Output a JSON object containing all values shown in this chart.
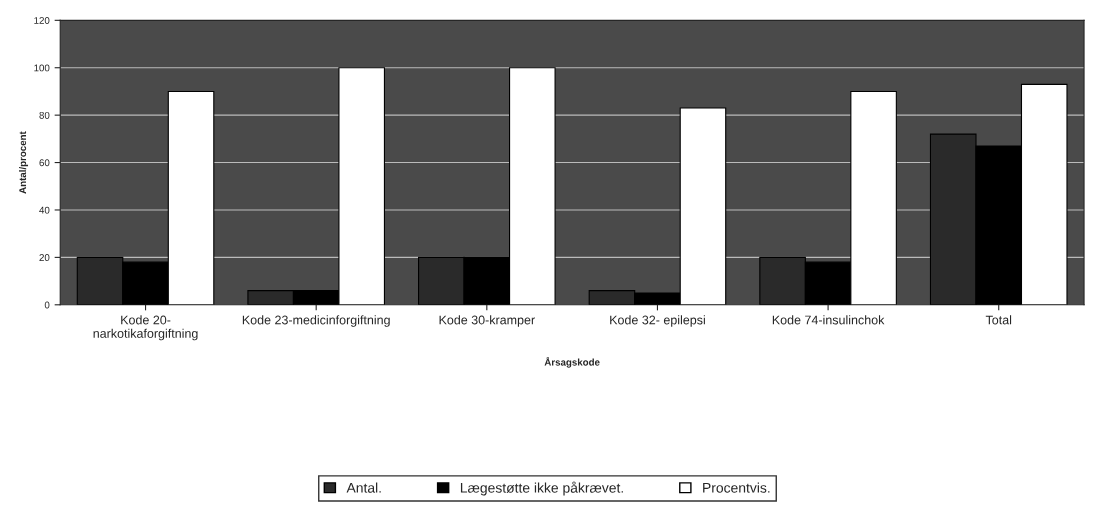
{
  "chart_data": {
    "type": "bar",
    "xlabel": "Årsagskode",
    "ylabel": "Antal/procent",
    "categories": [
      "Kode 20-\nnarkotikaforgiftning",
      "Kode 23-medicinforgiftning",
      "Kode 30-kramper",
      "Kode 32- epilepsi",
      "Kode 74-insulinchok",
      "Total"
    ],
    "series": [
      {
        "name": "Antal.",
        "color": "#2a2a2a",
        "values": [
          20,
          6,
          20,
          6,
          20,
          72
        ]
      },
      {
        "name": "Lægestøtte ikke påkrævet.",
        "color": "#000000",
        "values": [
          18,
          6,
          20,
          5,
          18,
          67
        ]
      },
      {
        "name": "Procentvis.",
        "color": "#ffffff",
        "values": [
          90,
          100,
          100,
          83,
          90,
          93
        ]
      }
    ],
    "ylim": [
      0,
      120
    ],
    "yticks": [
      0,
      20,
      40,
      60,
      80,
      100,
      120
    ],
    "grid": "y",
    "legend": "bottom"
  }
}
